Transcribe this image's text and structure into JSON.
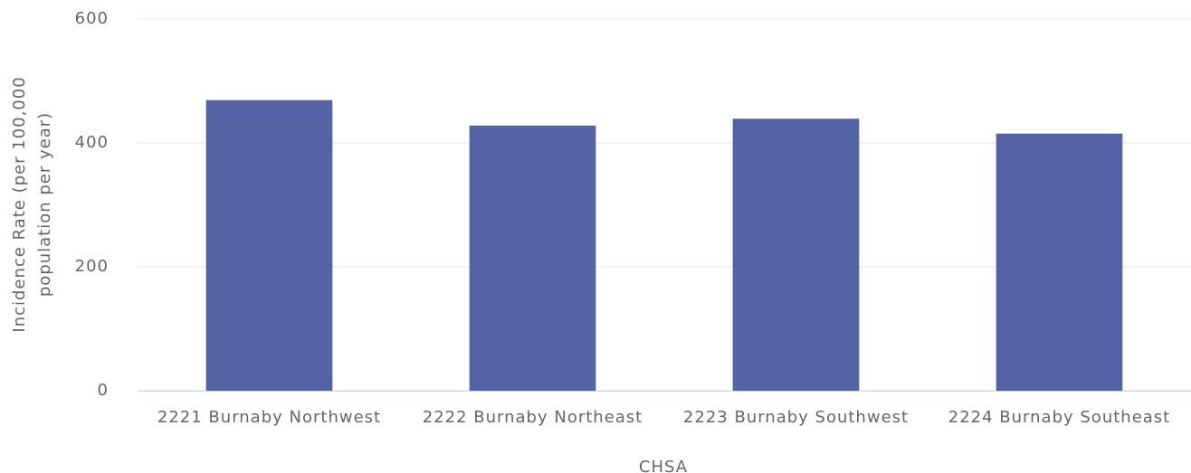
{
  "chart_data": {
    "type": "bar",
    "categories": [
      "2221 Burnaby Northwest",
      "2222 Burnaby Northeast",
      "2223 Burnaby Southwest",
      "2224 Burnaby Southeast"
    ],
    "values": [
      469,
      428,
      439,
      415
    ],
    "color": "#5463a6",
    "xlabel": "CHSA",
    "ylabel": [
      "Incidence Rate (per 100,000",
      "population per year)"
    ],
    "ylim": [
      0,
      600
    ],
    "yticks": [
      0,
      200,
      400,
      600
    ],
    "grid": true
  }
}
